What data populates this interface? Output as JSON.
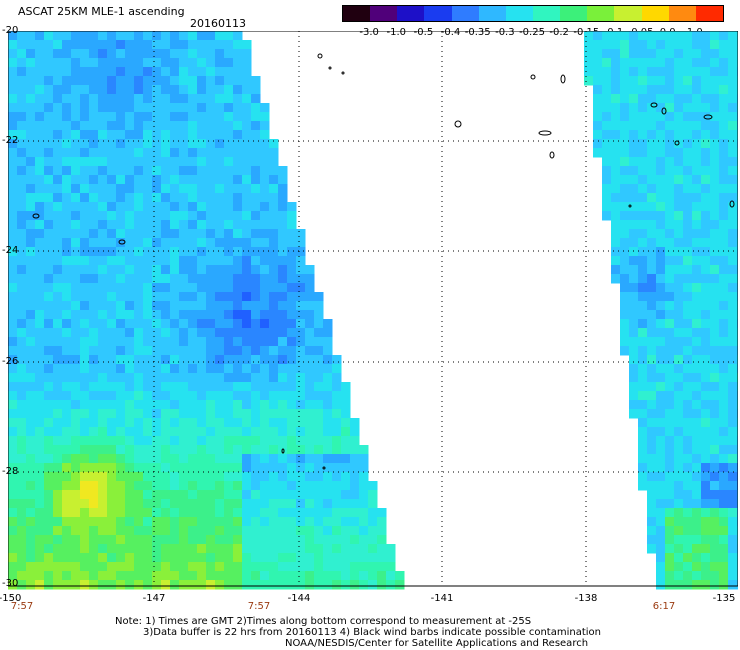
{
  "header": {
    "title": "ASCAT 25KM MLE-1 ascending",
    "date": "20160113"
  },
  "colorbar": {
    "labels": [
      "-3.0",
      "-1.0",
      "-0.5",
      "-0.4",
      "-0.35",
      "-0.3",
      "-0.25",
      "-0.2",
      "-0.15",
      "-0.1",
      "-0.05",
      "0.0",
      "1.0"
    ],
    "colors": [
      "#200010",
      "#50007a",
      "#1d10c8",
      "#1a3cf0",
      "#2f7cff",
      "#2fb8ff",
      "#26e2f0",
      "#30f5c0",
      "#3cf07a",
      "#7af03a",
      "#c8f030",
      "#ffd800",
      "#ff8a10",
      "#ff2a00"
    ]
  },
  "axes": {
    "lat_labels": [
      "-20",
      "-22",
      "-24",
      "-26",
      "-28",
      "-30"
    ],
    "lon_labels": [
      "-150",
      "-147",
      "-144",
      "-141",
      "-138",
      "-135"
    ]
  },
  "times": [
    "7:57",
    "7:57",
    "6:17"
  ],
  "notes": [
    "Note: 1) Times are GMT 2)Times along bottom correspond to measurement at -25S",
    "3)Data buffer is 22 hrs from 20160113 4) Black wind barbs indicate possible contamination",
    "NOAA/NESDIS/Center for Satellite Applications and Research"
  ]
}
